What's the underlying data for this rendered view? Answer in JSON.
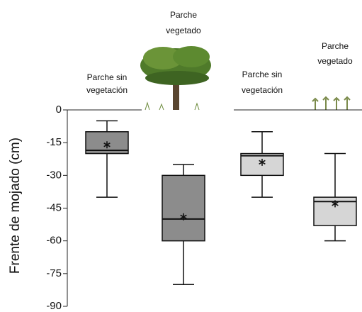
{
  "chart_data": {
    "type": "box",
    "y_label": "Frente de mojado (cm)",
    "categories": [
      [
        "Parche sin",
        "vegetación"
      ],
      [
        "Parche",
        "vegetado"
      ],
      [
        "Parche sin",
        "vegetación"
      ],
      [
        "Parche",
        "vegetado"
      ]
    ],
    "boxes": [
      {
        "whisker_high": -5,
        "q3": -10,
        "median": -18.5,
        "q1": -20,
        "whisker_low": -40,
        "mean": -16,
        "color": "#8c8c8c"
      },
      {
        "whisker_high": -25,
        "q3": -30,
        "median": -50,
        "q1": -60,
        "whisker_low": -80,
        "mean": -49,
        "color": "#8c8c8c"
      },
      {
        "whisker_high": -10,
        "q3": -20,
        "median": -21,
        "q1": -30,
        "whisker_low": -40,
        "mean": -24,
        "color": "#d6d6d6"
      },
      {
        "whisker_high": -20,
        "q3": -40,
        "median": -42,
        "q1": -53,
        "whisker_low": -60,
        "mean": -43,
        "color": "#d6d6d6"
      }
    ],
    "ylim": [
      -90,
      0
    ],
    "yticks": [
      0,
      -15,
      -30,
      -45,
      -60,
      -75,
      -90
    ]
  }
}
